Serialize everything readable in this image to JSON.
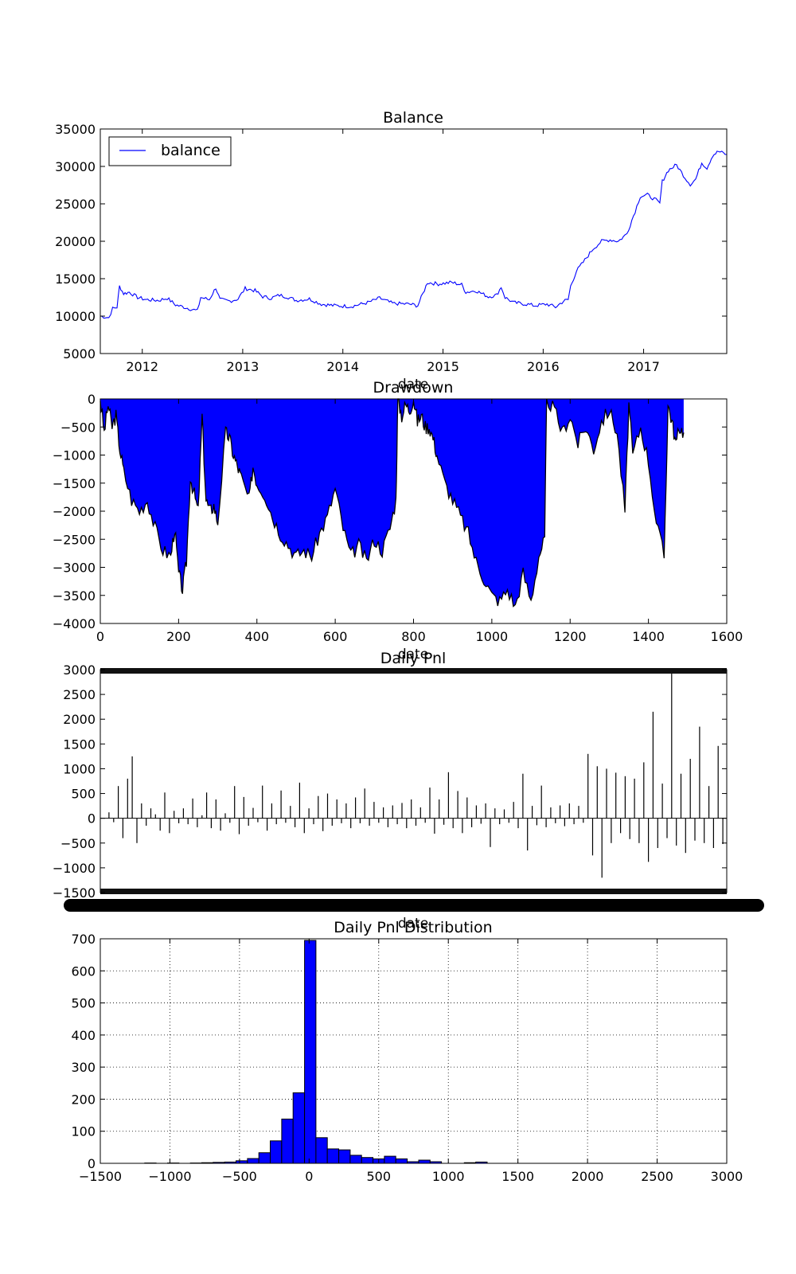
{
  "chart_data": [
    {
      "type": "line",
      "title": "Balance",
      "xlabel": "date",
      "ylabel": "",
      "legend": {
        "placement": "top-left",
        "entries": [
          "balance"
        ]
      },
      "series_color": "#0000ff",
      "xlim": [
        "2011-08-01",
        "2017-10-31"
      ],
      "ylim": [
        5000,
        35000
      ],
      "xticks": [
        {
          "label": "2012",
          "date": "2012-01-01"
        },
        {
          "label": "2013",
          "date": "2013-01-01"
        },
        {
          "label": "2014",
          "date": "2014-01-01"
        },
        {
          "label": "2015",
          "date": "2015-01-01"
        },
        {
          "label": "2016",
          "date": "2016-01-01"
        },
        {
          "label": "2017",
          "date": "2017-01-01"
        }
      ],
      "yticks": [
        "5000",
        "10000",
        "15000",
        "20000",
        "25000",
        "30000",
        "35000"
      ],
      "series": [
        {
          "name": "balance",
          "points": [
            [
              "2011-08-01",
              10000
            ],
            [
              "2011-09-01",
              9800
            ],
            [
              "2011-09-15",
              11000
            ],
            [
              "2011-10-01",
              11200
            ],
            [
              "2011-10-10",
              14000
            ],
            [
              "2011-10-25",
              13000
            ],
            [
              "2011-11-15",
              13200
            ],
            [
              "2011-12-15",
              12500
            ],
            [
              "2012-01-15",
              12200
            ],
            [
              "2012-03-01",
              12100
            ],
            [
              "2012-04-01",
              12400
            ],
            [
              "2012-05-01",
              11500
            ],
            [
              "2012-06-01",
              11200
            ],
            [
              "2012-07-01",
              10900
            ],
            [
              "2012-07-20",
              10700
            ],
            [
              "2012-08-01",
              12500
            ],
            [
              "2012-09-01",
              12200
            ],
            [
              "2012-09-25",
              13800
            ],
            [
              "2012-10-10",
              12200
            ],
            [
              "2012-11-15",
              12000
            ],
            [
              "2012-12-15",
              12300
            ],
            [
              "2013-01-10",
              13700
            ],
            [
              "2013-02-15",
              13400
            ],
            [
              "2013-03-15",
              12600
            ],
            [
              "2013-04-15",
              12400
            ],
            [
              "2013-05-15",
              12800
            ],
            [
              "2013-06-10",
              12600
            ],
            [
              "2013-07-15",
              12100
            ],
            [
              "2013-09-01",
              12300
            ],
            [
              "2013-10-15",
              11600
            ],
            [
              "2013-12-01",
              11400
            ],
            [
              "2014-02-01",
              11300
            ],
            [
              "2014-04-01",
              11800
            ],
            [
              "2014-05-15",
              12400
            ],
            [
              "2014-07-01",
              11700
            ],
            [
              "2014-09-01",
              11600
            ],
            [
              "2014-10-01",
              11400
            ],
            [
              "2014-10-20",
              13000
            ],
            [
              "2014-11-05",
              14500
            ],
            [
              "2014-12-15",
              14300
            ],
            [
              "2015-02-01",
              14500
            ],
            [
              "2015-03-10",
              14200
            ],
            [
              "2015-03-25",
              13200
            ],
            [
              "2015-05-01",
              13400
            ],
            [
              "2015-06-15",
              12600
            ],
            [
              "2015-07-15",
              12800
            ],
            [
              "2015-08-01",
              13900
            ],
            [
              "2015-08-15",
              12500
            ],
            [
              "2015-09-15",
              11800
            ],
            [
              "2015-11-01",
              11600
            ],
            [
              "2015-12-01",
              11400
            ],
            [
              "2016-01-15",
              11600
            ],
            [
              "2016-02-15",
              11200
            ],
            [
              "2016-03-15",
              12000
            ],
            [
              "2016-04-01",
              12200
            ],
            [
              "2016-04-10",
              14000
            ],
            [
              "2016-05-01",
              16000
            ],
            [
              "2016-06-01",
              17500
            ],
            [
              "2016-07-01",
              19000
            ],
            [
              "2016-08-01",
              20000
            ],
            [
              "2016-09-01",
              20200
            ],
            [
              "2016-10-01",
              20000
            ],
            [
              "2016-11-01",
              21000
            ],
            [
              "2016-12-01",
              24000
            ],
            [
              "2016-12-20",
              26000
            ],
            [
              "2017-01-15",
              26200
            ],
            [
              "2017-02-15",
              25500
            ],
            [
              "2017-03-01",
              25000
            ],
            [
              "2017-03-10",
              28000
            ],
            [
              "2017-04-01",
              29500
            ],
            [
              "2017-05-01",
              30200
            ],
            [
              "2017-06-01",
              28500
            ],
            [
              "2017-06-20",
              27600
            ],
            [
              "2017-07-10",
              28300
            ],
            [
              "2017-08-01",
              30500
            ],
            [
              "2017-08-20",
              29800
            ],
            [
              "2017-09-10",
              31500
            ],
            [
              "2017-10-01",
              32000
            ],
            [
              "2017-10-31",
              31600
            ]
          ]
        }
      ]
    },
    {
      "type": "area",
      "title": "Drawdown",
      "xlabel": "date",
      "ylabel": "",
      "fill_color": "#0000ff",
      "line_color": "#000000",
      "xlim": [
        0,
        1600
      ],
      "ylim": [
        -4000,
        0
      ],
      "xticks": [
        "0",
        "200",
        "400",
        "600",
        "800",
        "1000",
        "1200",
        "1400",
        "1600"
      ],
      "yticks": [
        "-4000",
        "-3500",
        "-3000",
        "-2500",
        "-2000",
        "-1500",
        "-1000",
        "-500",
        "0"
      ],
      "points": [
        [
          0,
          0
        ],
        [
          10,
          -600
        ],
        [
          20,
          -100
        ],
        [
          30,
          -500
        ],
        [
          40,
          -300
        ],
        [
          50,
          -900
        ],
        [
          60,
          -1300
        ],
        [
          80,
          -1800
        ],
        [
          100,
          -2000
        ],
        [
          120,
          -1800
        ],
        [
          140,
          -2300
        ],
        [
          160,
          -2700
        ],
        [
          180,
          -2800
        ],
        [
          190,
          -2300
        ],
        [
          200,
          -3100
        ],
        [
          210,
          -3400
        ],
        [
          220,
          -2900
        ],
        [
          230,
          -1400
        ],
        [
          240,
          -1700
        ],
        [
          250,
          -2000
        ],
        [
          260,
          -300
        ],
        [
          270,
          -1800
        ],
        [
          280,
          -2000
        ],
        [
          290,
          -1900
        ],
        [
          300,
          -2200
        ],
        [
          320,
          -600
        ],
        [
          330,
          -700
        ],
        [
          340,
          -1000
        ],
        [
          350,
          -1200
        ],
        [
          360,
          -1400
        ],
        [
          380,
          -1800
        ],
        [
          390,
          -1200
        ],
        [
          400,
          -1500
        ],
        [
          420,
          -1700
        ],
        [
          440,
          -2100
        ],
        [
          460,
          -2400
        ],
        [
          480,
          -2600
        ],
        [
          500,
          -2800
        ],
        [
          520,
          -2700
        ],
        [
          540,
          -2800
        ],
        [
          560,
          -2400
        ],
        [
          580,
          -2100
        ],
        [
          600,
          -1600
        ],
        [
          620,
          -2300
        ],
        [
          640,
          -2800
        ],
        [
          660,
          -2600
        ],
        [
          680,
          -2900
        ],
        [
          700,
          -2500
        ],
        [
          720,
          -2700
        ],
        [
          740,
          -2300
        ],
        [
          755,
          -1800
        ],
        [
          760,
          0
        ],
        [
          770,
          -300
        ],
        [
          780,
          -100
        ],
        [
          790,
          -200
        ],
        [
          800,
          0
        ],
        [
          810,
          -400
        ],
        [
          820,
          -300
        ],
        [
          830,
          -500
        ],
        [
          840,
          -500
        ],
        [
          850,
          -700
        ],
        [
          860,
          -1000
        ],
        [
          880,
          -1500
        ],
        [
          900,
          -1800
        ],
        [
          920,
          -2100
        ],
        [
          940,
          -2400
        ],
        [
          960,
          -2900
        ],
        [
          980,
          -3200
        ],
        [
          1000,
          -3500
        ],
        [
          1020,
          -3600
        ],
        [
          1040,
          -3400
        ],
        [
          1060,
          -3700
        ],
        [
          1080,
          -3100
        ],
        [
          1100,
          -3600
        ],
        [
          1120,
          -2800
        ],
        [
          1135,
          -2500
        ],
        [
          1140,
          0
        ],
        [
          1160,
          -200
        ],
        [
          1180,
          -600
        ],
        [
          1200,
          -300
        ],
        [
          1220,
          -800
        ],
        [
          1240,
          -500
        ],
        [
          1260,
          -900
        ],
        [
          1280,
          -400
        ],
        [
          1300,
          -200
        ],
        [
          1320,
          -600
        ],
        [
          1340,
          -2000
        ],
        [
          1350,
          -100
        ],
        [
          1360,
          -1000
        ],
        [
          1380,
          -500
        ],
        [
          1400,
          -1100
        ],
        [
          1420,
          -2200
        ],
        [
          1440,
          -2800
        ],
        [
          1450,
          -100
        ],
        [
          1460,
          -400
        ],
        [
          1470,
          -800
        ],
        [
          1480,
          -500
        ],
        [
          1490,
          -600
        ]
      ]
    },
    {
      "type": "bar",
      "title": "Daily Pnl",
      "xlabel": "date",
      "ylabel": "",
      "bar_color": "#000000",
      "ylim": [
        -1500,
        3000
      ],
      "yticks": [
        "-1500",
        "-1000",
        "-500",
        "0",
        "500",
        "1000",
        "1500",
        "2000",
        "2500",
        "3000"
      ],
      "values": [
        120,
        -80,
        650,
        -400,
        800,
        1250,
        -500,
        300,
        -150,
        200,
        80,
        -250,
        520,
        -300,
        150,
        -100,
        200,
        -120,
        400,
        -180,
        60,
        520,
        -200,
        380,
        -250,
        100,
        -90,
        650,
        -320,
        430,
        -150,
        210,
        -80,
        660,
        -250,
        300,
        -120,
        560,
        -90,
        250,
        -180,
        720,
        -300,
        200,
        -120,
        450,
        -260,
        500,
        -150,
        380,
        -100,
        300,
        -200,
        420,
        -100,
        600,
        -150,
        330,
        -90,
        220,
        -180,
        260,
        -120,
        310,
        -200,
        380,
        -150,
        220,
        -90,
        620,
        -310,
        380,
        -130,
        930,
        -200,
        550,
        -300,
        420,
        -180,
        260,
        -110,
        300,
        -580,
        200,
        -120,
        180,
        -90,
        330,
        -200,
        900,
        -650,
        250,
        -140,
        660,
        -180,
        220,
        -100,
        260,
        -160,
        300,
        -120,
        250,
        -90,
        1300,
        -750,
        1050,
        -1200,
        1000,
        -500,
        920,
        -300,
        850,
        -420,
        800,
        -500,
        1130,
        -880,
        2150,
        -600,
        700,
        -400,
        2950,
        -550,
        900,
        -700,
        1200,
        -450,
        1850,
        -500,
        650,
        -600,
        1460,
        -520
      ]
    },
    {
      "type": "bar",
      "title": "Daily Pnl Distribution",
      "xlabel": "",
      "ylabel": "",
      "bar_color": "#0000ff",
      "grid": true,
      "xlim": [
        -1500,
        3000
      ],
      "ylim": [
        0,
        700
      ],
      "xticks": [
        "-1500",
        "-1000",
        "-500",
        "0",
        "500",
        "1000",
        "1500",
        "2000",
        "2500",
        "3000"
      ],
      "yticks": [
        "0",
        "100",
        "200",
        "300",
        "400",
        "500",
        "600",
        "700"
      ],
      "bin_width": 82,
      "bin_left_edges": [
        -1181,
        -1017,
        -853,
        -771,
        -689,
        -607,
        -525,
        -443,
        -361,
        -279,
        -197,
        -115,
        -33,
        49,
        131,
        213,
        295,
        377,
        459,
        541,
        623,
        705,
        787,
        869,
        1115,
        1197
      ],
      "counts": [
        1,
        1,
        1,
        2,
        3,
        4,
        8,
        15,
        33,
        70,
        138,
        220,
        695,
        80,
        45,
        42,
        25,
        18,
        14,
        22,
        14,
        5,
        10,
        5,
        2,
        4
      ]
    }
  ]
}
